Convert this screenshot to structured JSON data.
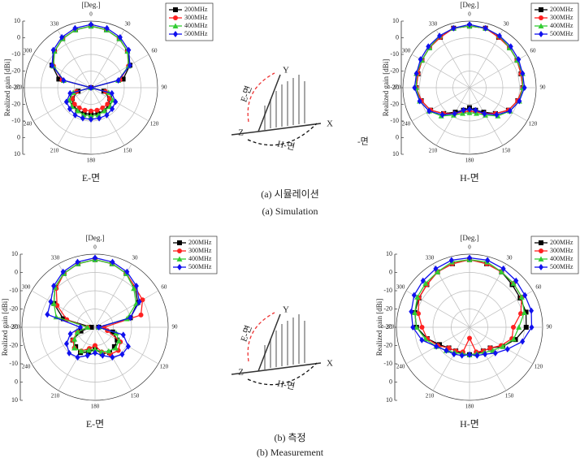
{
  "chart_data": [
    {
      "type": "polar",
      "title": "[Deg.]",
      "ylabel": "Realized gain [dBi]",
      "xlabel": "E-면",
      "theta": [
        0,
        15,
        30,
        45,
        60,
        75,
        90,
        105,
        120,
        135,
        150,
        165,
        180,
        195,
        210,
        225,
        240,
        255,
        270,
        285,
        300,
        315,
        330,
        345
      ],
      "thetaticks": [
        0,
        30,
        60,
        90,
        120,
        150,
        180,
        210,
        240,
        270,
        300,
        330
      ],
      "rlim": [
        -30,
        10
      ],
      "rticks": [
        10,
        0,
        -10,
        -20,
        -30
      ],
      "grid": true,
      "legend": "upper right",
      "series": [
        {
          "name": "200MHz",
          "color": "#000000",
          "marker": "square",
          "values": [
            7,
            6,
            4,
            1,
            -3,
            -10,
            -30,
            -22,
            -17,
            -15,
            -14,
            -14,
            -14,
            -14,
            -14,
            -15,
            -17,
            -22,
            -30,
            -10,
            -3,
            1,
            4,
            6
          ]
        },
        {
          "name": "300MHz",
          "color": "#ff2020",
          "marker": "circle",
          "values": [
            7,
            6,
            4,
            1,
            -4,
            -12,
            -30,
            -21,
            -17,
            -16,
            -16,
            -16,
            -16,
            -16,
            -16,
            -16,
            -17,
            -21,
            -30,
            -12,
            -4,
            1,
            4,
            6
          ]
        },
        {
          "name": "400MHz",
          "color": "#33cc33",
          "marker": "triangle",
          "values": [
            7,
            6,
            4,
            1,
            -4,
            -13,
            -30,
            -19,
            -15,
            -14,
            -14,
            -13,
            -13,
            -13,
            -14,
            -14,
            -15,
            -19,
            -30,
            -13,
            -4,
            1,
            4,
            6
          ]
        },
        {
          "name": "500MHz",
          "color": "#1010ee",
          "marker": "diamond",
          "values": [
            8,
            7,
            5,
            2,
            -3,
            -13,
            -30,
            -17,
            -13,
            -12,
            -11,
            -11,
            -11,
            -11,
            -11,
            -12,
            -13,
            -17,
            -30,
            -13,
            -3,
            2,
            5,
            7
          ]
        }
      ]
    },
    {
      "type": "polar",
      "title": "[Deg.]",
      "ylabel": "Realized gain [dBi]",
      "xlabel": "H-면",
      "theta": [
        0,
        15,
        30,
        45,
        60,
        75,
        90,
        105,
        120,
        135,
        150,
        165,
        180,
        195,
        210,
        225,
        240,
        255,
        270,
        285,
        300,
        315,
        330,
        345
      ],
      "thetaticks": [
        0,
        30,
        60,
        90,
        120,
        150,
        180,
        210,
        240,
        270,
        300,
        330
      ],
      "rlim": [
        -30,
        10
      ],
      "rticks": [
        10,
        0,
        -10,
        -20,
        -30
      ],
      "grid": true,
      "legend": "upper right",
      "series": [
        {
          "name": "200MHz",
          "color": "#000000",
          "marker": "square",
          "values": [
            7,
            7,
            5,
            4,
            3,
            2,
            2,
            0,
            -3,
            -8,
            -13,
            -16,
            -18,
            -16,
            -13,
            -8,
            -3,
            0,
            2,
            2,
            3,
            4,
            5,
            7
          ]
        },
        {
          "name": "300MHz",
          "color": "#ff2020",
          "marker": "circle",
          "values": [
            7,
            7,
            5,
            4,
            3,
            2,
            2,
            0,
            -3,
            -8,
            -12,
            -15,
            -16,
            -15,
            -12,
            -8,
            -3,
            0,
            2,
            2,
            3,
            4,
            5,
            7
          ]
        },
        {
          "name": "400MHz",
          "color": "#33cc33",
          "marker": "triangle",
          "values": [
            7,
            7,
            6,
            4,
            3,
            3,
            2,
            1,
            -2,
            -6,
            -11,
            -14,
            -15,
            -14,
            -11,
            -6,
            -2,
            1,
            2,
            3,
            3,
            4,
            6,
            7
          ]
        },
        {
          "name": "500MHz",
          "color": "#1010ee",
          "marker": "diamond",
          "values": [
            8,
            7,
            6,
            5,
            4,
            3,
            3,
            1,
            -2,
            -7,
            -12,
            -16,
            -17,
            -16,
            -12,
            -7,
            -2,
            1,
            3,
            3,
            4,
            5,
            6,
            7
          ]
        }
      ]
    },
    {
      "type": "polar",
      "title": "[Deg.]",
      "ylabel": "Realized gain [dBi]",
      "xlabel": "E-면",
      "theta": [
        0,
        15,
        30,
        45,
        60,
        75,
        90,
        105,
        120,
        135,
        150,
        165,
        180,
        195,
        210,
        225,
        240,
        255,
        270,
        285,
        300,
        315,
        330,
        345
      ],
      "thetaticks": [
        0,
        30,
        60,
        90,
        120,
        150,
        180,
        210,
        240,
        270,
        300,
        330
      ],
      "rlim": [
        -30,
        10
      ],
      "rticks": [
        10,
        0,
        -10,
        -20,
        -30
      ],
      "grid": true,
      "legend": "upper right",
      "series": [
        {
          "name": "200MHz",
          "color": "#000000",
          "marker": "square",
          "values": [
            7,
            6,
            4,
            1,
            -3,
            -10,
            -28,
            -20,
            -16,
            -15,
            -14,
            -15,
            -18,
            -16,
            -14,
            -15,
            -16,
            -22,
            -28,
            -12,
            -4,
            1,
            4,
            6
          ]
        },
        {
          "name": "300MHz",
          "color": "#ff2020",
          "marker": "circle",
          "values": [
            7,
            6,
            4,
            1,
            0,
            -4,
            -25,
            -23,
            -14,
            -12,
            -13,
            -16,
            -20,
            -18,
            -15,
            -14,
            -16,
            -20,
            -26,
            -14,
            -6,
            0,
            4,
            6
          ]
        },
        {
          "name": "400MHz",
          "color": "#33cc33",
          "marker": "triangle",
          "values": [
            7,
            6,
            4,
            0,
            -4,
            -12,
            -28,
            -18,
            -15,
            -14,
            -15,
            -16,
            -18,
            -17,
            -15,
            -14,
            -17,
            -20,
            -26,
            -8,
            -4,
            1,
            4,
            6
          ]
        },
        {
          "name": "500MHz",
          "color": "#1010ee",
          "marker": "diamond",
          "values": [
            8,
            7,
            5,
            2,
            -2,
            -10,
            -28,
            -14,
            -9,
            -9,
            -11,
            -14,
            -16,
            -14,
            -11,
            -10,
            -12,
            -16,
            -22,
            -3,
            -2,
            2,
            5,
            7
          ]
        }
      ]
    },
    {
      "type": "polar",
      "title": "[Deg.]",
      "ylabel": "Realized gain [dBi]",
      "xlabel": "H-면",
      "theta": [
        0,
        15,
        30,
        45,
        60,
        75,
        90,
        105,
        120,
        135,
        150,
        165,
        180,
        195,
        210,
        225,
        240,
        255,
        270,
        285,
        300,
        315,
        330,
        345
      ],
      "thetaticks": [
        0,
        30,
        60,
        90,
        120,
        150,
        180,
        210,
        240,
        270,
        300,
        330
      ],
      "rlim": [
        -30,
        10
      ],
      "rticks": [
        10,
        0,
        -10,
        -20,
        -30
      ],
      "grid": true,
      "legend": "upper right",
      "series": [
        {
          "name": "200MHz",
          "color": "#000000",
          "marker": "square",
          "values": [
            7,
            6,
            5,
            3,
            2,
            2,
            1,
            -4,
            -9,
            -14,
            -15,
            -15,
            -15,
            -15,
            -15,
            -14,
            -11,
            -6,
            -1,
            1,
            2,
            3,
            5,
            6
          ]
        },
        {
          "name": "300MHz",
          "color": "#ff2020",
          "marker": "circle",
          "values": [
            7,
            6,
            5,
            4,
            3,
            -1,
            -6,
            -6,
            -10,
            -14,
            -15,
            -16,
            -24,
            -16,
            -15,
            -14,
            -10,
            -6,
            -4,
            -1,
            2,
            3,
            5,
            6
          ]
        },
        {
          "name": "400MHz",
          "color": "#33cc33",
          "marker": "triangle",
          "values": [
            7,
            7,
            5,
            4,
            3,
            1,
            -3,
            -5,
            -9,
            -12,
            -14,
            -15,
            -15,
            -15,
            -14,
            -12,
            -9,
            -5,
            -1,
            1,
            3,
            4,
            5,
            7
          ]
        },
        {
          "name": "500MHz",
          "color": "#1010ee",
          "marker": "diamond",
          "values": [
            8,
            8,
            7,
            6,
            5,
            5,
            4,
            0,
            -6,
            -10,
            -13,
            -14,
            -15,
            -14,
            -13,
            -12,
            -9,
            -3,
            1,
            3,
            5,
            6,
            7,
            8
          ]
        }
      ]
    }
  ],
  "captions": [
    "(a)  시뮬레이션",
    "(a)  Simulation",
    "(b)  측정",
    "(b)  Measurement"
  ],
  "diagrams": [
    {
      "e_plane": "E-면",
      "h_plane": "H-면",
      "x": "X",
      "y": "Y",
      "z": "Z",
      "stray": "-면"
    },
    {
      "e_plane": "E-면",
      "h_plane": "H-면",
      "x": "X",
      "y": "Y",
      "z": "Z"
    }
  ]
}
